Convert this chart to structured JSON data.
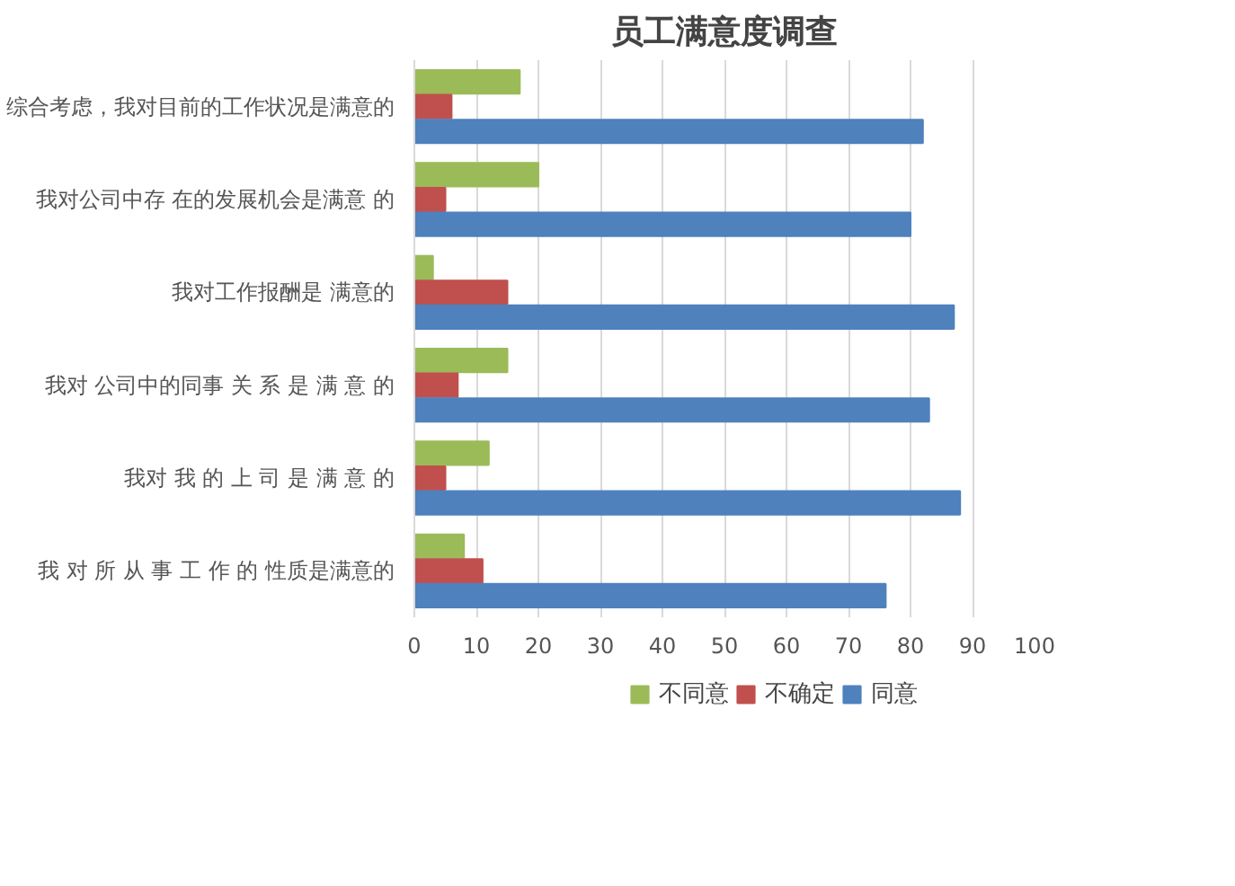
{
  "chart_data": {
    "type": "bar",
    "orientation": "horizontal",
    "title": "员工满意度调查",
    "categories": [
      "综合考虑，我对目前的工作状况是满意的",
      "我对公司中存 在的发展机会是满意 的",
      "我对工作报酬是 满意的",
      "我对 公司中的同事 关 系 是 满 意 的",
      "我对 我 的 上 司 是 满 意 的",
      "我 对 所 从 事 工 作 的 性质是满意的"
    ],
    "series": [
      {
        "name": "不同意",
        "color": "#9bbb59",
        "values": [
          17,
          20,
          3,
          15,
          12,
          8
        ]
      },
      {
        "name": "不确定",
        "color": "#c0504d",
        "values": [
          6,
          5,
          15,
          7,
          5,
          11
        ]
      },
      {
        "name": "同意",
        "color": "#4f81bd",
        "values": [
          82,
          80,
          87,
          83,
          88,
          76
        ]
      }
    ],
    "xlim": [
      0,
      100
    ],
    "xticks": [
      0,
      10,
      20,
      30,
      40,
      50,
      60,
      70,
      80,
      90,
      100
    ],
    "grid": "x",
    "legend": "bottom"
  }
}
